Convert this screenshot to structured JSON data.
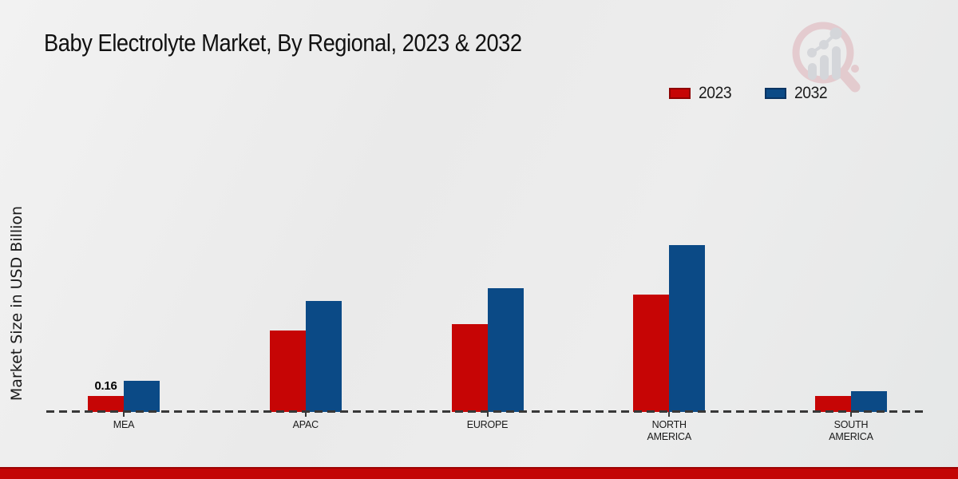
{
  "title": "Baby Electrolyte Market, By Regional, 2023 & 2032",
  "y_axis_title": "Market Size in USD Billion",
  "watermark_icon": "magnifier-bar-chart-logo",
  "footer": {
    "bar_color": "#c30505"
  },
  "chart_data": {
    "type": "bar",
    "title": "Baby Electrolyte Market, By Regional, 2023 & 2032",
    "xlabel": "",
    "ylabel": "Market Size in USD Billion",
    "categories": [
      "MEA",
      "APAC",
      "EUROPE",
      "NORTH AMERICA",
      "SOUTH AMERICA"
    ],
    "series": [
      {
        "name": "2023",
        "color": "#c60505",
        "values": [
          0.16,
          0.82,
          0.88,
          1.18,
          0.16
        ],
        "value_labels": [
          "0.16",
          "",
          "",
          "",
          ""
        ]
      },
      {
        "name": "2032",
        "color": "#0b4a86",
        "values": [
          0.31,
          1.11,
          1.24,
          1.67,
          0.21
        ],
        "value_labels": [
          "",
          "",
          "",
          "",
          ""
        ]
      }
    ],
    "ylim": [
      0,
      1.8
    ],
    "grid": false,
    "legend_position": "top-right",
    "baseline_style": "dashed",
    "unit": "USD Billion"
  }
}
